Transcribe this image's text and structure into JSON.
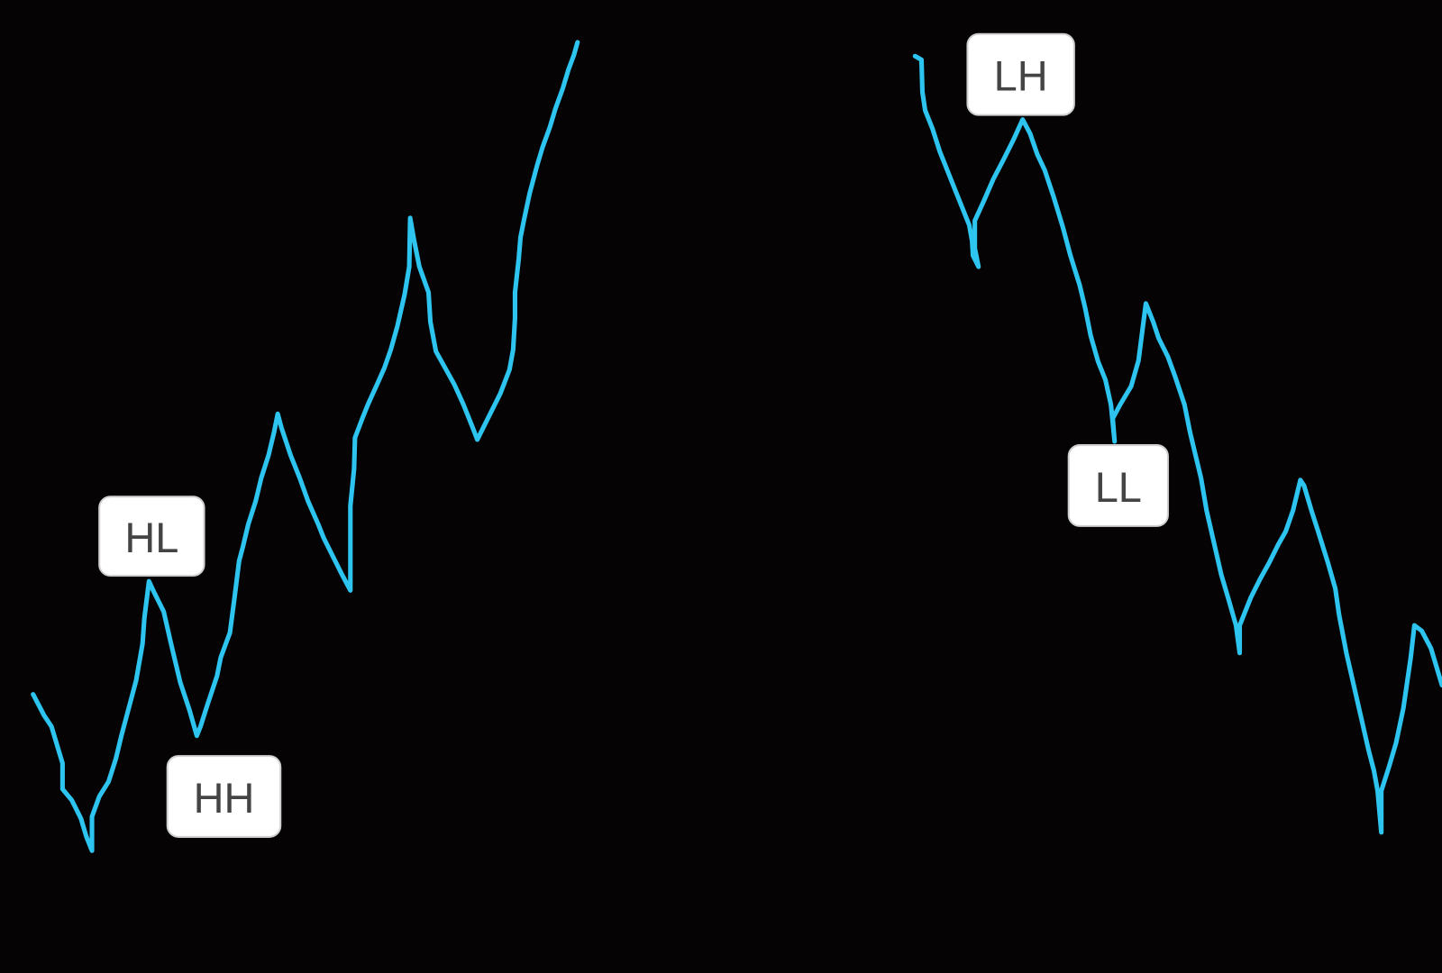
{
  "annotations": [
    {
      "label": "HL"
    },
    {
      "label": "HH"
    },
    {
      "label": "LH"
    },
    {
      "label": "LL"
    }
  ]
}
